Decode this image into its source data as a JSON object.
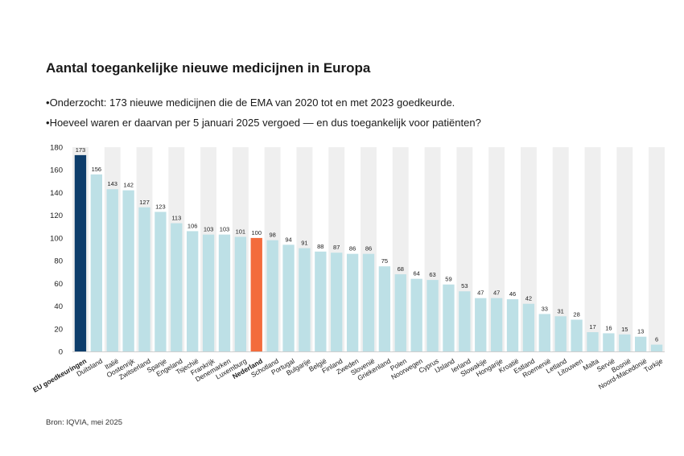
{
  "title": "Aantal toegankelijke nieuwe medicijnen in Europa",
  "bullets": [
    "Onderzocht: 173 nieuwe medicijnen die de EMA van 2020 tot en met 2023 goedkeurde.",
    "Hoeveel waren er daarvan per 5 januari 2025 vergoed — en dus toegankelijk voor patiënten?"
  ],
  "source": "Bron: IQVIA, mei 2025",
  "colors": {
    "default_bar": "#bde0e6",
    "eu_bar": "#0d3d6b",
    "nl_bar": "#f36c3d",
    "stripe": "#efefef"
  },
  "chart_data": {
    "type": "bar",
    "ylim": [
      0,
      180
    ],
    "yticks": [
      0,
      20,
      40,
      60,
      80,
      100,
      120,
      140,
      160,
      180
    ],
    "grid": false,
    "categories": [
      "EU goedkeuringen",
      "Duitsland",
      "Italië",
      "Oostenrijk",
      "Zwitserland",
      "Spanje",
      "Engeland",
      "Tsjechië",
      "Frankrijk",
      "Denemarken",
      "Luxemburg",
      "Nederland",
      "Schotland",
      "Portugal",
      "Bulgarije",
      "België",
      "Finland",
      "Zweden",
      "Slovenië",
      "Griekenland",
      "Polen",
      "Noorwegen",
      "Cyprus",
      "IJsland",
      "Ierland",
      "Slowakije",
      "Hongarije",
      "Kroatië",
      "Estland",
      "Roemenië",
      "Letland",
      "Litouwen",
      "Malta",
      "Servië",
      "Bosnië",
      "Noord-Macedonië",
      "Turkije"
    ],
    "values": [
      173,
      156,
      143,
      142,
      127,
      123,
      113,
      106,
      103,
      103,
      101,
      100,
      98,
      94,
      91,
      88,
      87,
      86,
      86,
      75,
      68,
      64,
      63,
      59,
      53,
      47,
      47,
      46,
      42,
      33,
      31,
      28,
      17,
      16,
      15,
      13,
      6
    ],
    "highlight": {
      "EU goedkeuringen": "eu",
      "Nederland": "nl"
    }
  }
}
